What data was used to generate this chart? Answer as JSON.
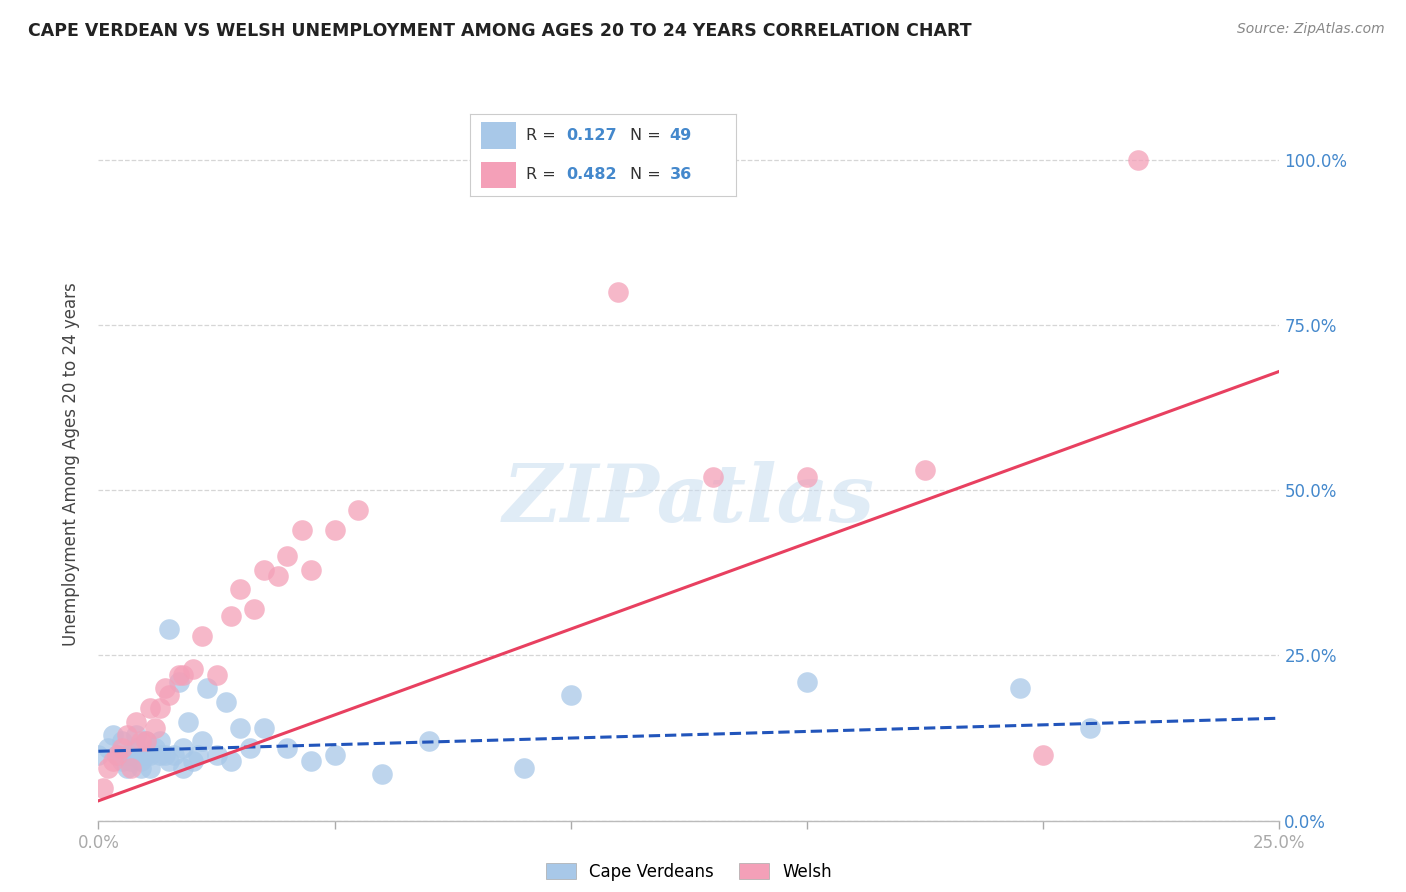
{
  "title": "CAPE VERDEAN VS WELSH UNEMPLOYMENT AMONG AGES 20 TO 24 YEARS CORRELATION CHART",
  "source": "Source: ZipAtlas.com",
  "ylabel": "Unemployment Among Ages 20 to 24 years",
  "xlim": [
    0.0,
    0.25
  ],
  "ylim": [
    0.0,
    1.08
  ],
  "yticks": [
    0.0,
    0.25,
    0.5,
    0.75,
    1.0
  ],
  "ytick_labels": [
    "0.0%",
    "25.0%",
    "50.0%",
    "75.0%",
    "100.0%"
  ],
  "xticks": [
    0.0,
    0.05,
    0.1,
    0.15,
    0.2,
    0.25
  ],
  "xtick_labels": [
    "0.0%",
    "",
    "",
    "",
    "",
    "25.0%"
  ],
  "cape_verdean_color": "#a8c8e8",
  "welsh_color": "#f4a0b8",
  "trendline_cape_color": "#2255bb",
  "trendline_welsh_color": "#e84060",
  "R_cape": 0.127,
  "N_cape": 49,
  "R_welsh": 0.482,
  "N_welsh": 36,
  "watermark": "ZIPatlas",
  "cape_verdean_x": [
    0.0,
    0.002,
    0.003,
    0.004,
    0.005,
    0.005,
    0.006,
    0.006,
    0.007,
    0.007,
    0.008,
    0.008,
    0.009,
    0.009,
    0.01,
    0.01,
    0.011,
    0.011,
    0.012,
    0.013,
    0.013,
    0.014,
    0.015,
    0.015,
    0.016,
    0.017,
    0.018,
    0.018,
    0.019,
    0.02,
    0.021,
    0.022,
    0.023,
    0.025,
    0.027,
    0.028,
    0.03,
    0.032,
    0.035,
    0.04,
    0.045,
    0.05,
    0.06,
    0.07,
    0.09,
    0.1,
    0.15,
    0.195,
    0.21
  ],
  "cape_verdean_y": [
    0.1,
    0.11,
    0.13,
    0.1,
    0.09,
    0.12,
    0.1,
    0.08,
    0.1,
    0.09,
    0.11,
    0.13,
    0.09,
    0.08,
    0.1,
    0.12,
    0.1,
    0.08,
    0.11,
    0.1,
    0.12,
    0.1,
    0.29,
    0.09,
    0.1,
    0.21,
    0.08,
    0.11,
    0.15,
    0.09,
    0.1,
    0.12,
    0.2,
    0.1,
    0.18,
    0.09,
    0.14,
    0.11,
    0.14,
    0.11,
    0.09,
    0.1,
    0.07,
    0.12,
    0.08,
    0.19,
    0.21,
    0.2,
    0.14
  ],
  "welsh_x": [
    0.001,
    0.002,
    0.003,
    0.004,
    0.005,
    0.006,
    0.007,
    0.008,
    0.009,
    0.01,
    0.011,
    0.012,
    0.013,
    0.014,
    0.015,
    0.017,
    0.018,
    0.02,
    0.022,
    0.025,
    0.028,
    0.03,
    0.033,
    0.035,
    0.038,
    0.04,
    0.043,
    0.045,
    0.05,
    0.055,
    0.11,
    0.13,
    0.15,
    0.175,
    0.2,
    0.22
  ],
  "welsh_y": [
    0.05,
    0.08,
    0.09,
    0.1,
    0.11,
    0.13,
    0.08,
    0.15,
    0.12,
    0.12,
    0.17,
    0.14,
    0.17,
    0.2,
    0.19,
    0.22,
    0.22,
    0.23,
    0.28,
    0.22,
    0.31,
    0.35,
    0.32,
    0.38,
    0.37,
    0.4,
    0.44,
    0.38,
    0.44,
    0.47,
    0.8,
    0.52,
    0.52,
    0.53,
    0.1,
    1.0
  ],
  "trendline_cv_x0": 0.0,
  "trendline_cv_x1": 0.25,
  "trendline_cv_y0": 0.105,
  "trendline_cv_y1": 0.155,
  "trendline_welsh_x0": 0.0,
  "trendline_welsh_x1": 0.25,
  "trendline_welsh_y0": 0.03,
  "trendline_welsh_y1": 0.68
}
